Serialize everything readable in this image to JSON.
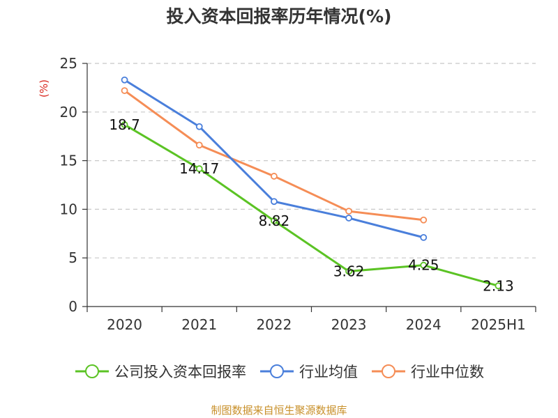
{
  "chart_data": {
    "type": "line",
    "title": "投入资本回报率历年情况(%)",
    "ylabel": "(%)",
    "categories": [
      "2020",
      "2021",
      "2022",
      "2023",
      "2024",
      "2025H1"
    ],
    "ylim": [
      0,
      25
    ],
    "yticks": [
      "0",
      "5",
      "10",
      "15",
      "20",
      "25"
    ],
    "grid": true,
    "legend_position": "bottom",
    "series": [
      {
        "name": "公司投入资本回报率",
        "color": "#5bc324",
        "values": [
          18.7,
          14.17,
          8.82,
          3.62,
          4.25,
          2.13
        ],
        "labels": [
          "18.7",
          "14.17",
          "8.82",
          "3.62",
          "4.25",
          "2.13"
        ]
      },
      {
        "name": "行业均值",
        "color": "#4a7fdb",
        "values": [
          23.3,
          18.5,
          10.8,
          9.1,
          7.1,
          null
        ]
      },
      {
        "name": "行业中位数",
        "color": "#f58d56",
        "values": [
          22.2,
          16.6,
          13.4,
          9.8,
          8.9,
          null
        ]
      }
    ]
  },
  "footer": {
    "source": "制图数据来自恒生聚源数据库"
  }
}
